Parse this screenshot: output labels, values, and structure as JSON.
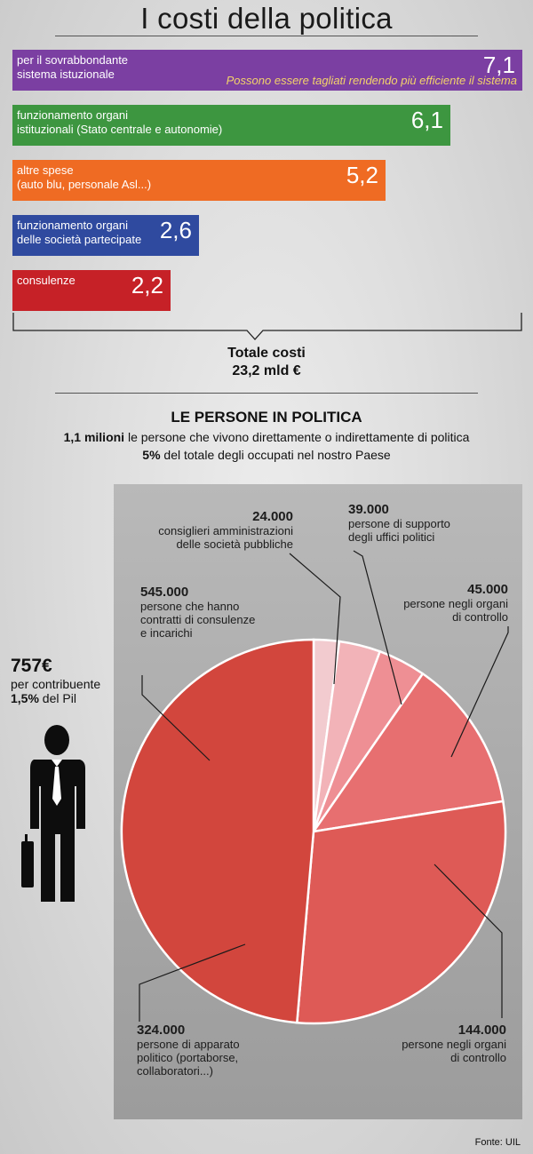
{
  "title": "I costi della politica",
  "bars": [
    {
      "label1": "per il sovrabbondante",
      "label2": "sistema istuzionale",
      "value": 7.1,
      "value_text": "7,1",
      "color": "#7b3fa2",
      "note": "Possono essere tagliati rendendo più efficiente il sistema"
    },
    {
      "label1": "funzionamento organi",
      "label2": "istituzionali (Stato centrale e autonomie)",
      "value": 6.1,
      "value_text": "6,1",
      "color": "#3d9640"
    },
    {
      "label1": "altre spese",
      "label2": "(auto blu, personale Asl...)",
      "value": 5.2,
      "value_text": "5,2",
      "color": "#ef6b23"
    },
    {
      "label1": "funzionamento organi",
      "label2": "delle società partecipate",
      "value": 2.6,
      "value_text": "2,6",
      "color": "#2f4a9f"
    },
    {
      "label1": "consulenze",
      "label2": "",
      "value": 2.2,
      "value_text": "2,2",
      "color": "#c62127"
    }
  ],
  "total": {
    "label": "Totale costi",
    "value": "23,2 mld  €"
  },
  "section": {
    "title": "LE PERSONE IN POLITICA",
    "line1_bold": "1,1 milioni",
    "line1_rest": " le persone che vivono direttamente o indirettamente di politica",
    "line2_bold": "5%",
    "line2_rest": " del totale degli occupati nel nostro Paese"
  },
  "person": {
    "amount": "757€",
    "line1": "per contribuente",
    "line2_bold": "1,5%",
    "line2_rest": " del Pil"
  },
  "chart_data": [
    {
      "type": "bar",
      "title": "I costi della politica",
      "categories": [
        "per il sovrabbondante sistema istuzionale",
        "funzionamento organi istituzionali (Stato centrale e autonomie)",
        "altre spese (auto blu, personale Asl...)",
        "funzionamento organi delle società partecipate",
        "consulenze"
      ],
      "values": [
        7.1,
        6.1,
        5.2,
        2.6,
        2.2
      ],
      "orientation": "horizontal",
      "total": 23.2
    },
    {
      "type": "pie",
      "title": "LE PERSONE IN POLITICA",
      "slices": [
        {
          "value": 24000,
          "value_text": "24.000",
          "label": "consiglieri amministrazioni delle società pubbliche",
          "color": "#f2cbcf"
        },
        {
          "value": 39000,
          "value_text": "39.000",
          "label": "persone di supporto degli uffici politici",
          "color": "#f2b3b8"
        },
        {
          "value": 45000,
          "value_text": "45.000",
          "label": "persone negli organi di controllo",
          "color": "#ee8f94"
        },
        {
          "value": 144000,
          "value_text": "144.000",
          "label": "persone negli organi di controllo",
          "color": "#e76f70"
        },
        {
          "value": 324000,
          "value_text": "324.000",
          "label": "persone di apparato politico (portaborse, collaboratori...)",
          "color": "#de5a56"
        },
        {
          "value": 545000,
          "value_text": "545.000",
          "label": "persone che hanno contratti di consulenze e incarichi",
          "color": "#d2463d"
        }
      ]
    }
  ],
  "pie_labels": [
    {
      "value": "24.000",
      "lines": [
        "consiglieri amministrazioni",
        "delle società pubbliche"
      ]
    },
    {
      "value": "39.000",
      "lines": [
        "persone di supporto",
        "degli uffici politici"
      ]
    },
    {
      "value": "45.000",
      "lines": [
        "persone negli organi",
        "di controllo"
      ]
    },
    {
      "value": "144.000",
      "lines": [
        "persone negli organi",
        "di controllo"
      ]
    },
    {
      "value": "324.000",
      "lines": [
        "persone di apparato",
        "politico (portaborse,",
        "collaboratori...)"
      ]
    },
    {
      "value": "545.000",
      "lines": [
        "persone che hanno",
        "contratti di consulenze",
        "e incarichi"
      ]
    }
  ],
  "source": "Fonte: UIL"
}
